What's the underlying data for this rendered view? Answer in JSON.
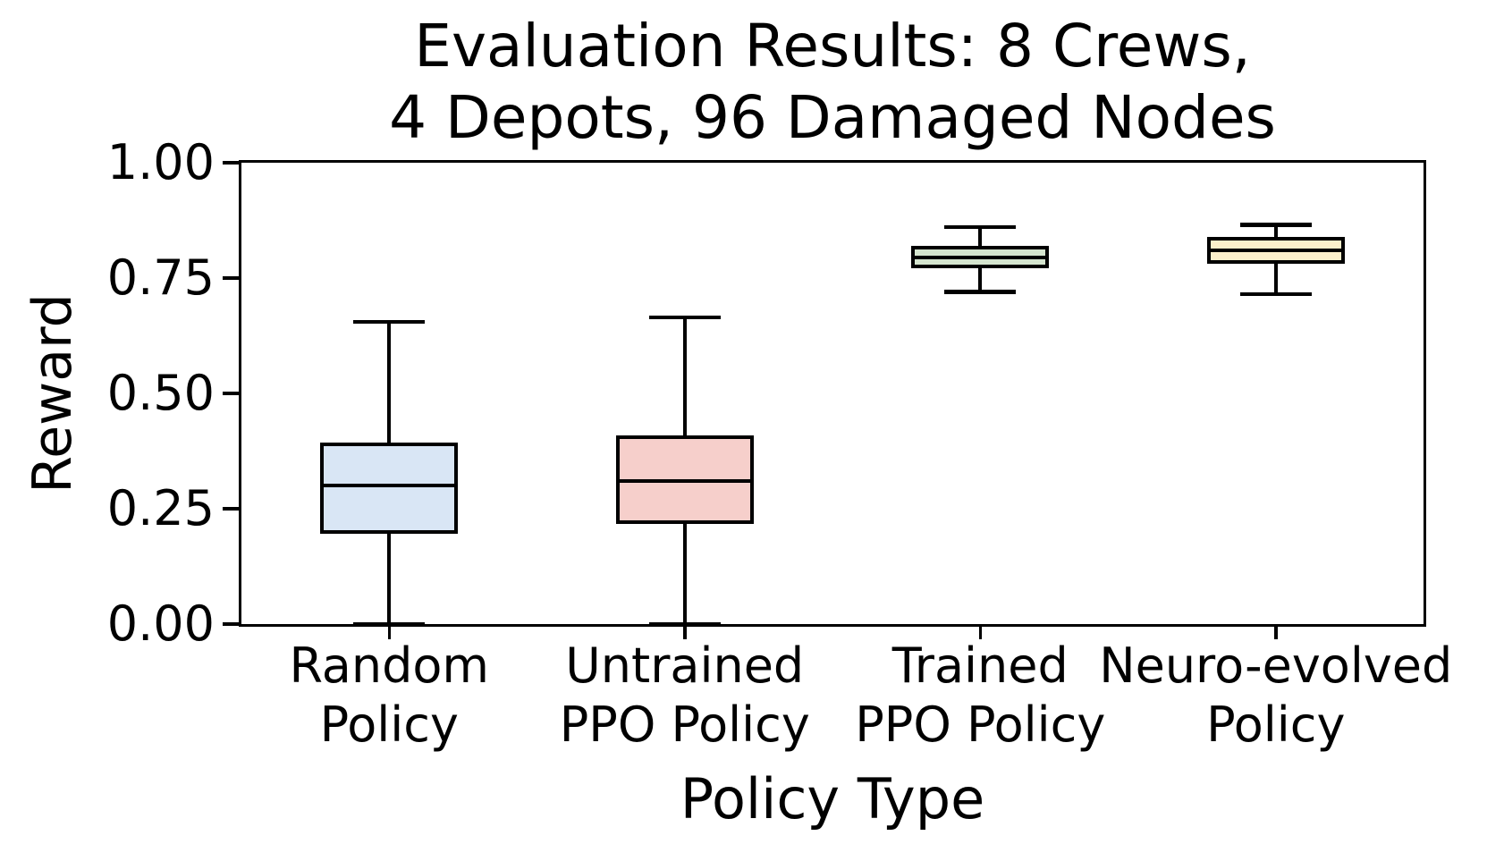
{
  "chart_data": {
    "type": "boxplot",
    "title": "Evaluation Results: 8 Crews,\n4 Depots, 96 Damaged Nodes",
    "xlabel": "Policy Type",
    "ylabel": "Reward",
    "ylim": [
      0.0,
      1.0
    ],
    "yticks": [
      0.0,
      0.25,
      0.5,
      0.75,
      1.0
    ],
    "ytick_labels": [
      "0.00",
      "0.25",
      "0.50",
      "0.75",
      "1.00"
    ],
    "grid": false,
    "legend": false,
    "orientation": "vertical",
    "categories": [
      "Random\nPolicy",
      "Untrained\nPPO Policy",
      "Trained\nPPO Policy",
      "Neuro-evolved\nPolicy"
    ],
    "series": [
      {
        "name": "Random Policy",
        "whislo": 0.0,
        "q1": 0.2,
        "med": 0.3,
        "q3": 0.39,
        "whishi": 0.655,
        "fill": "#d9e6f5"
      },
      {
        "name": "Untrained PPO Policy",
        "whislo": 0.0,
        "q1": 0.22,
        "med": 0.31,
        "q3": 0.405,
        "whishi": 0.665,
        "fill": "#f6cfcb"
      },
      {
        "name": "Trained PPO Policy",
        "whislo": 0.72,
        "q1": 0.775,
        "med": 0.795,
        "q3": 0.815,
        "whishi": 0.86,
        "fill": "#d5e5cf"
      },
      {
        "name": "Neuro-evolved Policy",
        "whislo": 0.715,
        "q1": 0.785,
        "med": 0.81,
        "q3": 0.835,
        "whishi": 0.865,
        "fill": "#fcf0cb"
      }
    ],
    "line_color": "#000000",
    "background_color": "#ffffff"
  }
}
